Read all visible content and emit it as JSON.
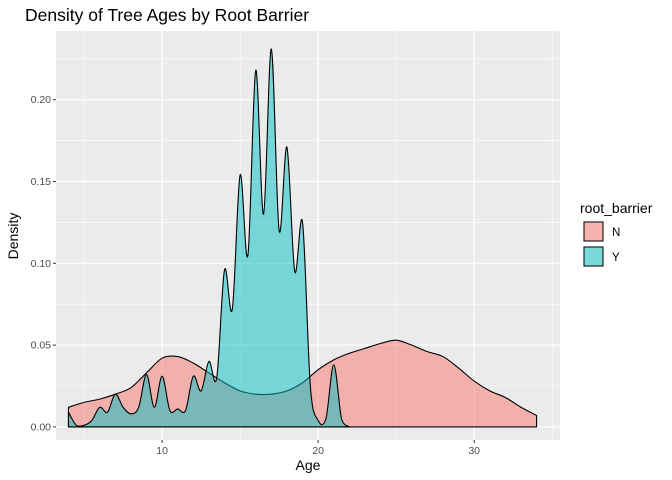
{
  "chart_data": {
    "type": "area",
    "subtype": "density",
    "title": "Density of Tree Ages by Root Barrier",
    "xlabel": "Age",
    "ylabel": "Density",
    "xlim": [
      3.2,
      35.5
    ],
    "ylim": [
      -0.008,
      0.242
    ],
    "x_ticks": [
      10,
      20,
      30
    ],
    "x_tick_labels": [
      "10",
      "20",
      "30"
    ],
    "y_ticks": [
      0,
      0.05,
      0.1,
      0.15,
      0.2
    ],
    "y_tick_labels": [
      "0.00",
      "0.05",
      "0.10",
      "0.15",
      "0.20"
    ],
    "grid": true,
    "legend": {
      "title": "root_barrier",
      "position": "right"
    },
    "series": [
      {
        "name": "N",
        "color": "#F8766D",
        "x": [
          4,
          5,
          6,
          7,
          8,
          9,
          10,
          11,
          12,
          13,
          14,
          15,
          16,
          17,
          18,
          19,
          20,
          21,
          22,
          23,
          24,
          25,
          26,
          27,
          28,
          29,
          30,
          31,
          32,
          33,
          34
        ],
        "y": [
          0.012,
          0.015,
          0.017,
          0.02,
          0.024,
          0.033,
          0.042,
          0.043,
          0.039,
          0.033,
          0.027,
          0.022,
          0.02,
          0.02,
          0.022,
          0.027,
          0.035,
          0.041,
          0.045,
          0.048,
          0.051,
          0.053,
          0.05,
          0.046,
          0.043,
          0.036,
          0.028,
          0.022,
          0.018,
          0.012,
          0.007
        ]
      },
      {
        "name": "Y",
        "color": "#00BFC4",
        "x": [
          4,
          4.5,
          5,
          5.5,
          6,
          6.5,
          7,
          7.5,
          8,
          8.5,
          9,
          9.5,
          10,
          10.5,
          11,
          11.5,
          12,
          12.5,
          13,
          13.5,
          14,
          14.5,
          15,
          15.5,
          16,
          16.5,
          17,
          17.5,
          18,
          18.5,
          19,
          19.5,
          20,
          20.5,
          21,
          21.5,
          22
        ],
        "y": [
          0.009,
          0.001,
          0.001,
          0.004,
          0.012,
          0.009,
          0.02,
          0.012,
          0.008,
          0.012,
          0.032,
          0.012,
          0.031,
          0.01,
          0.011,
          0.01,
          0.031,
          0.022,
          0.04,
          0.03,
          0.096,
          0.072,
          0.154,
          0.105,
          0.218,
          0.13,
          0.231,
          0.12,
          0.171,
          0.095,
          0.125,
          0.025,
          0.004,
          0.005,
          0.038,
          0.005,
          0.0
        ]
      }
    ]
  }
}
